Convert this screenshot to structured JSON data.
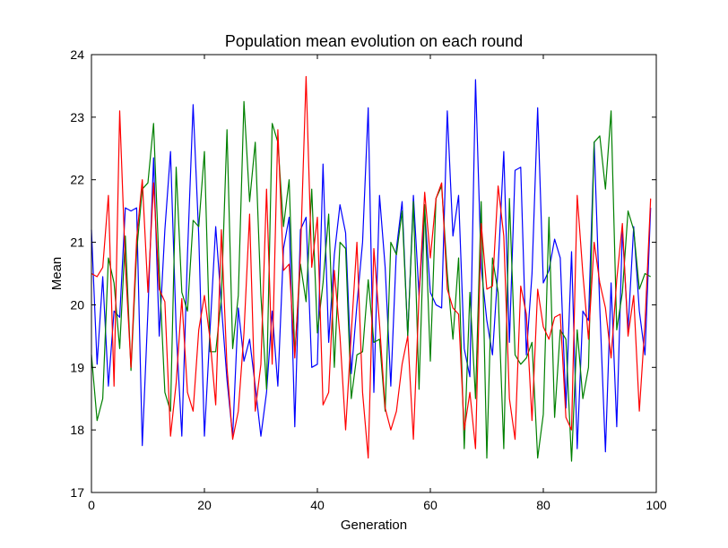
{
  "chart_data": {
    "type": "line",
    "title": "Population mean evolution on each round",
    "xlabel": "Generation",
    "ylabel": "Mean",
    "xlim": [
      0,
      100
    ],
    "ylim": [
      17,
      24
    ],
    "xticks": [
      0,
      20,
      40,
      60,
      80,
      100
    ],
    "yticks": [
      17,
      18,
      19,
      20,
      21,
      22,
      23,
      24
    ],
    "grid": false,
    "legend": "none",
    "series": [
      {
        "color": "#0000ff",
        "x": [
          0,
          1,
          2,
          3,
          4,
          5,
          6,
          7,
          8,
          9,
          10,
          11,
          12,
          13,
          14,
          15,
          16,
          17,
          18,
          19,
          20,
          21,
          22,
          23,
          24,
          25,
          26,
          27,
          28,
          29,
          30,
          31,
          32,
          33,
          34,
          35,
          36,
          37,
          38,
          39,
          40,
          41,
          42,
          43,
          44,
          45,
          46,
          47,
          48,
          49,
          50,
          51,
          52,
          53,
          54,
          55,
          56,
          57,
          58,
          59,
          60,
          61,
          62,
          63,
          64,
          65,
          66,
          67,
          68,
          69,
          70,
          71,
          72,
          73,
          74,
          75,
          76,
          77,
          78,
          79,
          80,
          81,
          82,
          83,
          84,
          85,
          86,
          87,
          88,
          89,
          90,
          91,
          92,
          93,
          94,
          95,
          96,
          97,
          98,
          99
        ],
        "y": [
          21.2,
          19.05,
          20.45,
          18.7,
          19.9,
          19.8,
          21.55,
          21.5,
          21.55,
          17.75,
          19.9,
          22.35,
          19.5,
          21.2,
          22.45,
          19.6,
          17.9,
          20.8,
          23.2,
          21.1,
          17.9,
          19.6,
          21.25,
          20.0,
          18.8,
          17.9,
          19.95,
          19.1,
          19.45,
          18.7,
          17.9,
          18.6,
          19.9,
          18.7,
          20.9,
          21.4,
          18.05,
          21.2,
          21.4,
          19.0,
          19.05,
          22.25,
          19.4,
          20.8,
          21.6,
          21.15,
          18.9,
          20.0,
          21.0,
          23.15,
          18.6,
          21.75,
          20.6,
          18.7,
          20.9,
          21.65,
          19.5,
          21.75,
          20.15,
          21.5,
          20.2,
          20.0,
          19.95,
          23.1,
          21.1,
          21.75,
          19.3,
          18.85,
          23.6,
          20.6,
          19.75,
          19.2,
          20.6,
          22.45,
          19.4,
          22.15,
          22.2,
          19.2,
          20.5,
          23.15,
          20.35,
          20.55,
          21.05,
          20.75,
          18.35,
          20.85,
          17.7,
          19.9,
          19.75,
          22.6,
          19.95,
          17.65,
          20.35,
          18.05,
          21.2,
          19.6,
          21.25,
          19.9,
          19.2,
          21.55
        ]
      },
      {
        "color": "#008000",
        "x": [
          0,
          1,
          2,
          3,
          4,
          5,
          6,
          7,
          8,
          9,
          10,
          11,
          12,
          13,
          14,
          15,
          16,
          17,
          18,
          19,
          20,
          21,
          22,
          23,
          24,
          25,
          26,
          27,
          28,
          29,
          30,
          31,
          32,
          33,
          34,
          35,
          36,
          37,
          38,
          39,
          40,
          41,
          42,
          43,
          44,
          45,
          46,
          47,
          48,
          49,
          50,
          51,
          52,
          53,
          54,
          55,
          56,
          57,
          58,
          59,
          60,
          61,
          62,
          63,
          64,
          65,
          66,
          67,
          68,
          69,
          70,
          71,
          72,
          73,
          74,
          75,
          76,
          77,
          78,
          79,
          80,
          81,
          82,
          83,
          84,
          85,
          86,
          87,
          88,
          89,
          90,
          91,
          92,
          93,
          94,
          95,
          96,
          97,
          98,
          99
        ],
        "y": [
          19.2,
          18.15,
          18.5,
          20.75,
          20.35,
          19.3,
          21.1,
          18.95,
          20.85,
          21.85,
          21.95,
          22.9,
          20.55,
          18.6,
          18.3,
          22.2,
          20.2,
          19.9,
          21.35,
          21.25,
          22.45,
          19.25,
          19.25,
          20.1,
          22.8,
          19.3,
          20.15,
          23.25,
          21.65,
          22.6,
          20.15,
          18.65,
          22.9,
          22.6,
          21.25,
          22.0,
          19.2,
          20.65,
          20.05,
          21.85,
          19.55,
          20.35,
          21.45,
          19.0,
          21.0,
          20.9,
          18.5,
          19.2,
          19.25,
          20.4,
          19.4,
          19.45,
          18.3,
          21.0,
          20.8,
          21.5,
          19.5,
          21.65,
          18.65,
          21.6,
          19.1,
          21.7,
          21.9,
          20.5,
          19.45,
          20.75,
          17.7,
          20.2,
          18.5,
          21.65,
          17.55,
          20.75,
          20.2,
          17.7,
          21.7,
          19.2,
          19.05,
          19.15,
          19.4,
          17.55,
          18.25,
          21.4,
          18.2,
          19.6,
          19.45,
          17.5,
          19.6,
          18.5,
          19.0,
          22.6,
          22.7,
          21.85,
          23.1,
          19.6,
          20.2,
          21.5,
          21.2,
          20.25,
          20.5,
          20.45
        ]
      },
      {
        "color": "#ff0000",
        "x": [
          0,
          1,
          2,
          3,
          4,
          5,
          6,
          7,
          8,
          9,
          10,
          11,
          12,
          13,
          14,
          15,
          16,
          17,
          18,
          19,
          20,
          21,
          22,
          23,
          24,
          25,
          26,
          27,
          28,
          29,
          30,
          31,
          32,
          33,
          34,
          35,
          36,
          37,
          38,
          39,
          40,
          41,
          42,
          43,
          44,
          45,
          46,
          47,
          48,
          49,
          50,
          51,
          52,
          53,
          54,
          55,
          56,
          57,
          58,
          59,
          60,
          61,
          62,
          63,
          64,
          65,
          66,
          67,
          68,
          69,
          70,
          71,
          72,
          73,
          74,
          75,
          76,
          77,
          78,
          79,
          80,
          81,
          82,
          83,
          84,
          85,
          86,
          87,
          88,
          89,
          90,
          91,
          92,
          93,
          94,
          95,
          96,
          97,
          98,
          99
        ],
        "y": [
          20.5,
          20.45,
          20.6,
          21.75,
          18.7,
          23.1,
          20.65,
          19.0,
          21.05,
          22.0,
          20.2,
          21.95,
          20.25,
          20.05,
          17.9,
          18.75,
          20.1,
          18.6,
          18.3,
          19.6,
          20.15,
          19.45,
          18.4,
          21.2,
          19.0,
          17.85,
          18.3,
          19.55,
          21.45,
          18.3,
          19.05,
          21.85,
          19.05,
          22.8,
          20.55,
          20.65,
          19.15,
          20.8,
          23.65,
          20.6,
          21.4,
          18.4,
          18.6,
          20.55,
          19.5,
          18.0,
          19.55,
          21.0,
          18.6,
          17.55,
          20.9,
          19.7,
          18.35,
          18.0,
          18.3,
          19.05,
          19.5,
          17.85,
          20.15,
          21.8,
          20.75,
          21.7,
          21.95,
          20.25,
          19.95,
          19.85,
          18.0,
          18.6,
          17.7,
          21.3,
          20.25,
          20.3,
          21.9,
          21.1,
          18.5,
          17.85,
          20.3,
          19.85,
          18.15,
          20.25,
          19.65,
          19.45,
          19.8,
          19.85,
          18.2,
          18.0,
          21.75,
          20.5,
          19.45,
          21.0,
          20.35,
          19.95,
          19.15,
          20.4,
          21.3,
          19.5,
          20.15,
          18.3,
          19.7,
          21.7
        ]
      }
    ]
  }
}
